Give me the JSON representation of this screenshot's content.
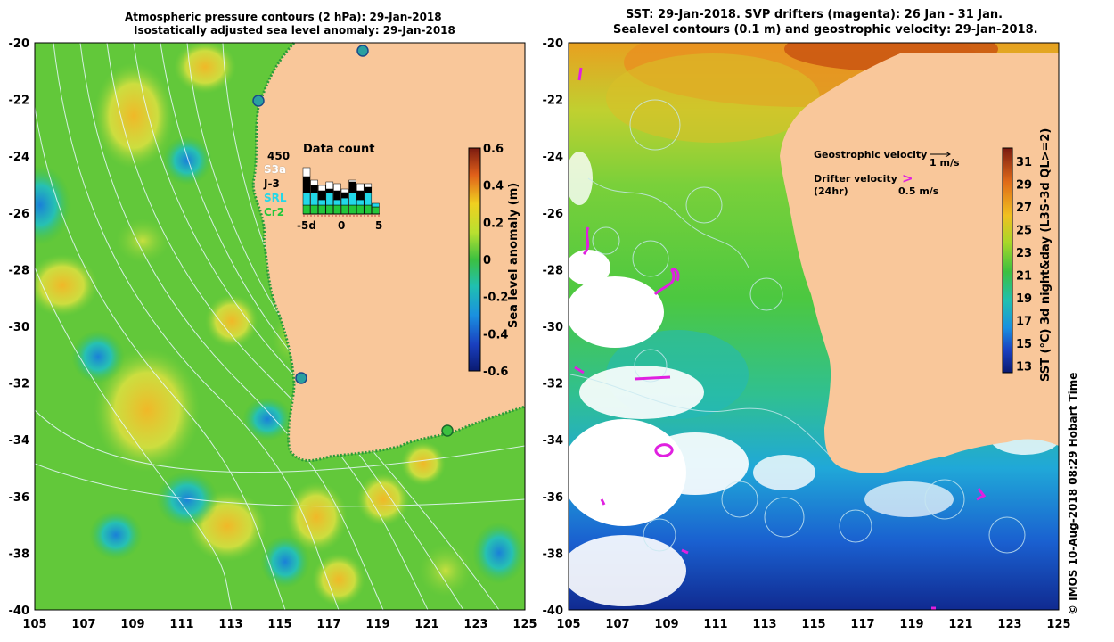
{
  "left_panel": {
    "title_line1": "Atmospheric pressure contours (2 hPa): 29-Jan-2018",
    "title_line2": "Isostatically adjusted sea level anomaly: 29-Jan-2018",
    "colorbar": {
      "label": "Sea level anomaly (m)",
      "ticks": [
        "0.6",
        "0.4",
        "0.2",
        "0",
        "-0.2",
        "-0.4",
        "-0.6"
      ]
    },
    "data_count": {
      "title": "Data count",
      "max_label": "450",
      "satellites": [
        {
          "name": "S3a",
          "color": "#ffffff"
        },
        {
          "name": "J-3",
          "color": "#000000"
        },
        {
          "name": "SRL",
          "color": "#22d8e8"
        },
        {
          "name": "Cr2",
          "color": "#22c83a"
        }
      ],
      "xticks": [
        "-5d",
        "0",
        "5"
      ]
    }
  },
  "right_panel": {
    "title_line1": "SST: 29-Jan-2018. SVP drifters (magenta): 26 Jan - 31 Jan.",
    "title_line2": "Sealevel contours (0.1 m) and geostrophic velocity: 29-Jan-2018.",
    "legend": {
      "geostrophic_label": "Geostrophic velocity",
      "geostrophic_scale": "1 m/s",
      "drifter_label_1": "Drifter velocity",
      "drifter_label_2": "(24hr)",
      "drifter_scale": "0.5 m/s"
    },
    "colorbar": {
      "label": "SST (°C) 3d night&day (L3S-3d QL>=2)",
      "ticks": [
        "31",
        "29",
        "27",
        "25",
        "23",
        "21",
        "19",
        "17",
        "15",
        "13"
      ]
    }
  },
  "axes": {
    "lat_ticks": [
      "-20",
      "-22",
      "-24",
      "-26",
      "-28",
      "-30",
      "-32",
      "-34",
      "-36",
      "-38",
      "-40"
    ],
    "lon_ticks": [
      "105",
      "107",
      "109",
      "111",
      "113",
      "115",
      "117",
      "119",
      "121",
      "123",
      "125"
    ]
  },
  "credit": "© IMOS 10-Aug-2018 08:29 Hobart Time",
  "colors": {
    "land": "#f9c79a",
    "sla_base": "#5cc83a",
    "sst_warm": "#e07a10",
    "sst_cool": "#1a3fc0"
  }
}
